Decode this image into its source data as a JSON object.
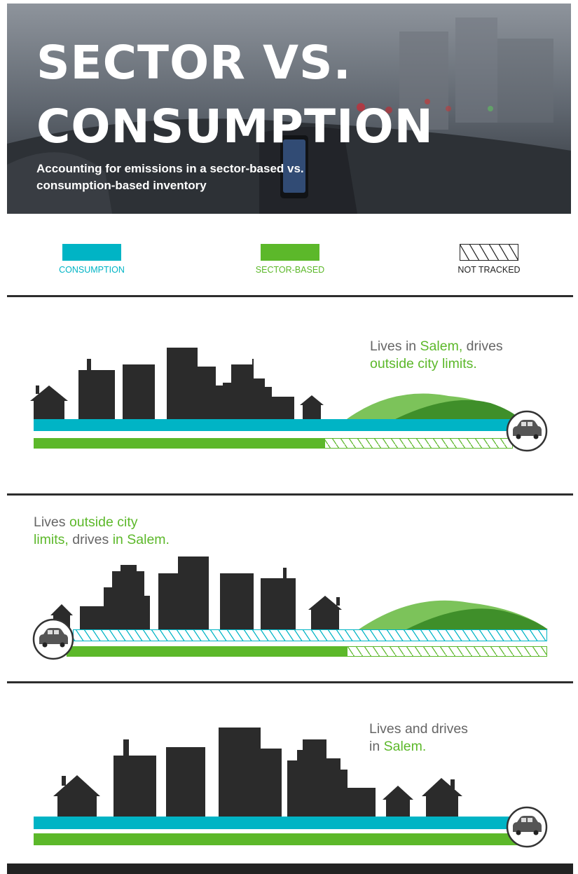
{
  "header": {
    "title_line1": "SECTOR VS.",
    "title_line2": "CONSUMPTION",
    "subtitle": "Accounting for emissions in a sector-based vs. consumption-based inventory"
  },
  "legend": [
    {
      "label": "CONSUMPTION",
      "color": "#00b4c5",
      "style": "solid"
    },
    {
      "label": "SECTOR-BASED",
      "color": "#5cb82a",
      "style": "solid"
    },
    {
      "label": "NOT TRACKED",
      "color": "#222222",
      "style": "hatched"
    }
  ],
  "scenarios": [
    {
      "caption": {
        "part1": "Lives in ",
        "part2": "Salem,",
        "part3": " drives",
        "part4": "outside city limits."
      },
      "consumption_bar": {
        "tracked": "full"
      },
      "sector_bar": {
        "tracked_fraction": 0.61,
        "not_tracked_fraction": 0.39
      }
    },
    {
      "caption": {
        "part1": "Lives ",
        "part2": "outside city",
        "part3": "limits,",
        "part4": " drives ",
        "part5": "in Salem."
      },
      "consumption_bar": {
        "tracked": "none"
      },
      "sector_bar": {
        "tracked_fraction": 0.55,
        "not_tracked_fraction": 0.45
      }
    },
    {
      "caption": {
        "part1": "Lives and drives",
        "part2": "in ",
        "part3": "Salem."
      },
      "consumption_bar": {
        "tracked": "full"
      },
      "sector_bar": {
        "tracked": "full"
      }
    }
  ],
  "colors": {
    "consumption": "#00b4c5",
    "sector": "#5cb82a",
    "hill_light": "#7cc35a",
    "hill_dark": "#3f8f2a",
    "building": "#2b2b2b",
    "text_gray": "#666666"
  },
  "icons": {
    "car": "car-icon",
    "house": "house-icon"
  }
}
